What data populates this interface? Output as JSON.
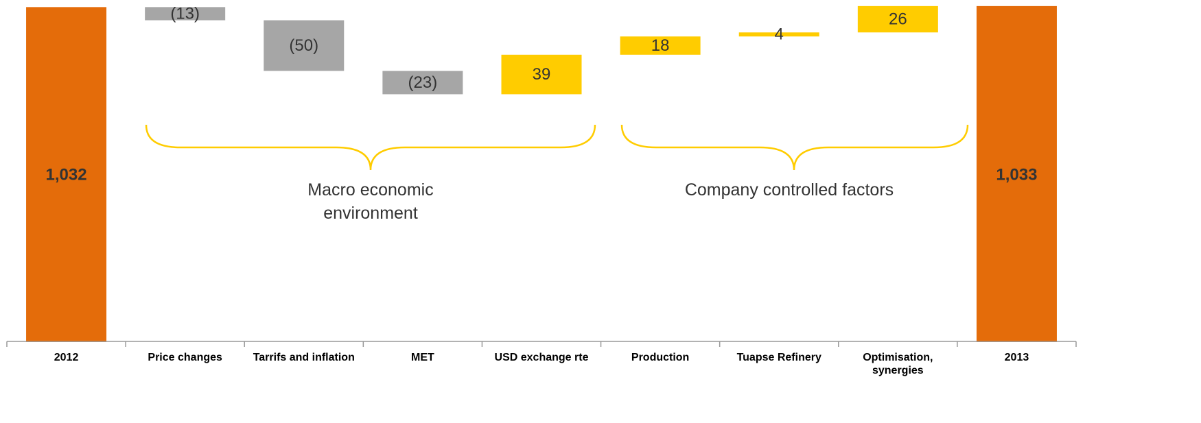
{
  "chart_data": {
    "type": "waterfall",
    "categories": [
      "2012",
      "Price changes",
      "Tarrifs and inflation",
      "MET",
      "USD exchange rte",
      "Production",
      "Tuapse Refinery",
      "Optimisation, synergies",
      "2013"
    ],
    "values": [
      1032,
      -13,
      -50,
      -23,
      39,
      18,
      4,
      26,
      1033
    ],
    "value_labels": [
      "1,032",
      "(13)",
      "(50)",
      "(23)",
      "39",
      "18",
      "4",
      "26",
      "1,033"
    ],
    "colors": {
      "total": "#e46c0a",
      "increase": "#ffcc00",
      "decrease": "#a6a6a6"
    },
    "ylim": [
      702,
      1039
    ],
    "annotations": [
      "Macro economic environment",
      "Company controlled factors"
    ]
  }
}
